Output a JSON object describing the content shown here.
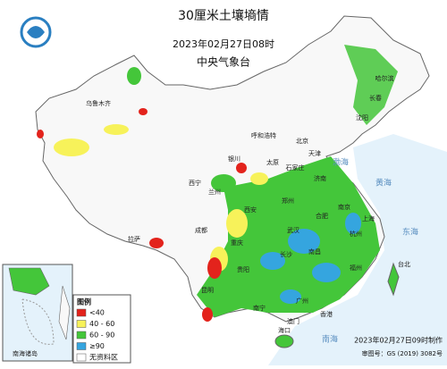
{
  "header": {
    "title": "30厘米土壤墒情",
    "time": "2023年02月27日08时",
    "org": "中央气象台"
  },
  "legend": {
    "title": "图例",
    "items": [
      {
        "label": "<40",
        "color": "#e3231c"
      },
      {
        "label": "40 - 60",
        "color": "#f7f25a"
      },
      {
        "label": "60 - 90",
        "color": "#44c63a"
      },
      {
        "label": "≥90",
        "color": "#35a5df"
      },
      {
        "label": "无资料区",
        "color": "#ffffff"
      }
    ]
  },
  "inset": {
    "label": "南海诸岛"
  },
  "cities": [
    "乌鲁木齐",
    "拉萨",
    "西宁",
    "兰州",
    "银川",
    "呼和浩特",
    "北京",
    "天津",
    "太原",
    "石家庄",
    "济南",
    "郑州",
    "西安",
    "成都",
    "重庆",
    "武汉",
    "合肥",
    "南京",
    "上海",
    "杭州",
    "长沙",
    "南昌",
    "福州",
    "贵阳",
    "昆明",
    "南宁",
    "广州",
    "香港",
    "澳门",
    "海口",
    "台北",
    "哈尔滨",
    "长春",
    "沈阳"
  ],
  "seas": [
    "渤海",
    "黄海",
    "东海",
    "南海"
  ],
  "footer": {
    "made": "2023年02月27日09时制作",
    "approval": "审图号：GS (2019) 3082号"
  }
}
